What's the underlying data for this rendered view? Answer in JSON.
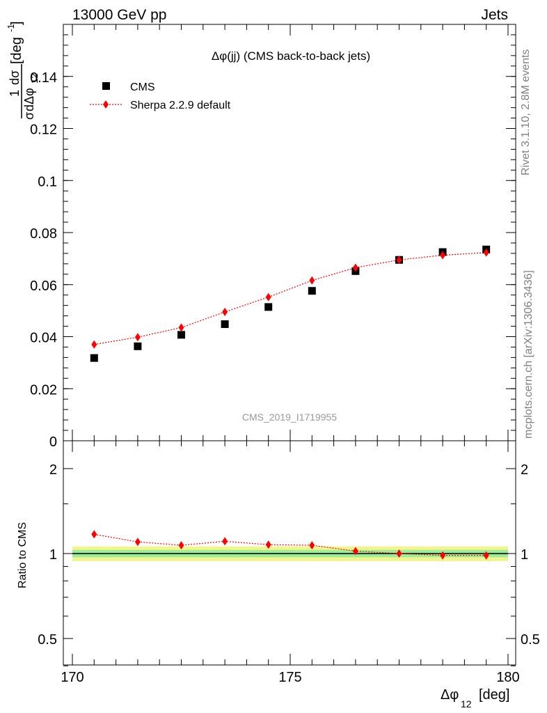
{
  "header": {
    "left": "13000 GeV pp",
    "right": "Jets"
  },
  "side_labels": {
    "top": "Rivet 3.1.10,  2.8M events",
    "bottom": "mcplots.cern.ch [arXiv:1306.3436]"
  },
  "chart_data": [
    {
      "type": "scatter",
      "title": "Δφ(jj) (CMS back-to-back jets)",
      "watermark": "CMS_2019_I1719955",
      "ylabel": {
        "prefix": "1",
        "d_sigma": "dσ",
        "sigma": "σ",
        "denom": "dΔφ",
        "denom_sub": "12",
        "unit": "[deg",
        "unit_sup": "-1",
        "unit_close": "]"
      },
      "xlabel": {
        "main": "Δφ",
        "sub": "12",
        "unit": "[deg]"
      },
      "xlim": [
        170,
        180
      ],
      "ylim": [
        0,
        0.16
      ],
      "x_ticks": [
        "170",
        "175",
        "180"
      ],
      "y_ticks": [
        "0",
        "0.02",
        "0.04",
        "0.06",
        "0.08",
        "0.1",
        "0.12",
        "0.14"
      ],
      "x": [
        170.5,
        171.5,
        172.5,
        173.5,
        174.5,
        175.5,
        176.5,
        177.5,
        178.5,
        179.5
      ],
      "legend": {
        "placement": "top-left"
      },
      "series": [
        {
          "name": "CMS",
          "color": "#000000",
          "marker": "square",
          "values": [
            0.0318,
            0.0363,
            0.0407,
            0.0448,
            0.0514,
            0.0576,
            0.0652,
            0.0695,
            0.0725,
            0.0735
          ]
        },
        {
          "name": "Sherpa 2.2.9 default",
          "color": "#ff0000",
          "marker": "diamond",
          "line": "dotted",
          "values": [
            0.037,
            0.0398,
            0.0435,
            0.0495,
            0.0552,
            0.0616,
            0.0665,
            0.0695,
            0.0713,
            0.0723
          ]
        }
      ]
    },
    {
      "type": "scatter",
      "ylabel": "Ratio to CMS",
      "xlim": [
        170,
        180
      ],
      "ylim": [
        0.35,
        2.3
      ],
      "y_ticks": [
        "0.5",
        "1",
        "2"
      ],
      "x": [
        170.5,
        171.5,
        172.5,
        173.5,
        174.5,
        175.5,
        176.5,
        177.5,
        178.5,
        179.5
      ],
      "reference": {
        "value": 1.0,
        "band_inner": [
          0.97,
          1.03
        ],
        "band_outer": [
          0.94,
          1.06
        ]
      },
      "series": [
        {
          "name": "Sherpa 2.2.9 default",
          "color": "#ff0000",
          "marker": "diamond",
          "line": "dotted",
          "values": [
            1.17,
            1.1,
            1.07,
            1.105,
            1.075,
            1.07,
            1.02,
            1.0,
            0.985,
            0.985
          ]
        }
      ]
    }
  ]
}
